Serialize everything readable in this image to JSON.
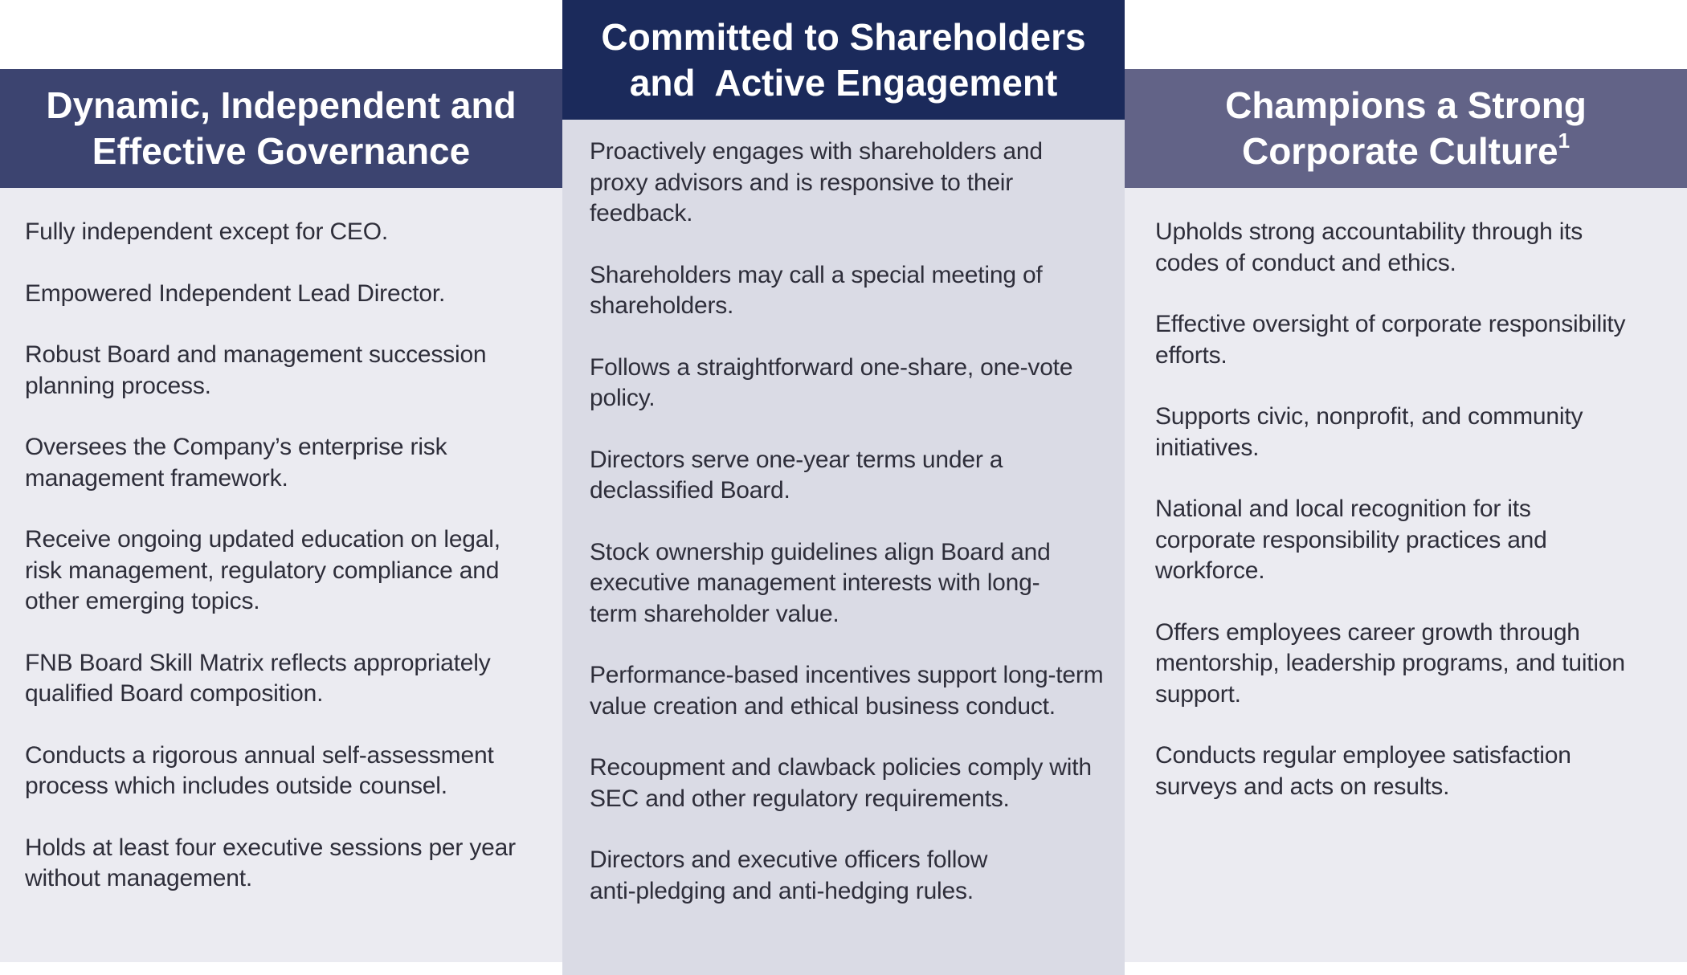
{
  "columns": {
    "left": {
      "title": "Dynamic, Independent and Effective Governance",
      "items": [
        "Fully independent except for CEO.",
        "Empowered Independent Lead Director.",
        "Robust Board and management succession planning process.",
        "Oversees the Company’s enterprise risk management framework.",
        "Receive ongoing updated education on legal, risk management, regulatory compliance and other emerging topics.",
        "FNB Board Skill Matrix reflects appropriately qualified Board composition.",
        "Conducts a rigorous annual self-assessment process which includes outside counsel.",
        "Holds at least four executive sessions per year without management."
      ]
    },
    "middle": {
      "title": "Committed to Shareholders and  Active Engagement",
      "items": [
        "Proactively engages with shareholders and proxy advisors and is responsive to their feedback.",
        "Shareholders may call a special meeting of shareholders.",
        "Follows a straightforward one-share, one-vote policy.",
        "Directors serve one-year terms under a declassified Board.",
        "Stock ownership guidelines align Board and executive management interests with long-term shareholder value.",
        "Performance-based incentives support long-term value creation and ethical business conduct.",
        "Recoupment and clawback policies comply with SEC and other regulatory requirements.",
        "Directors and executive officers follow anti-pledging and anti-hedging rules."
      ]
    },
    "right": {
      "title": "Champions a Strong Corporate Culture",
      "title_footnote": "1",
      "items": [
        "Upholds strong accountability through its codes of conduct and ethics.",
        "Effective oversight of corporate responsibility efforts.",
        "Supports civic, nonprofit, and community initiatives.",
        "National and local recognition for its corporate responsibility practices and workforce.",
        "Offers employees career growth through mentorship, leadership programs, and tuition support.",
        "Conducts regular employee satisfaction surveys and acts on results."
      ]
    }
  },
  "colors": {
    "left_header": "#3c4470",
    "middle_header": "#1b2a5b",
    "right_header": "#626387",
    "side_panel": "#ebebf1",
    "middle_panel": "#dadbe5",
    "body_text": "#2e2e3a"
  }
}
